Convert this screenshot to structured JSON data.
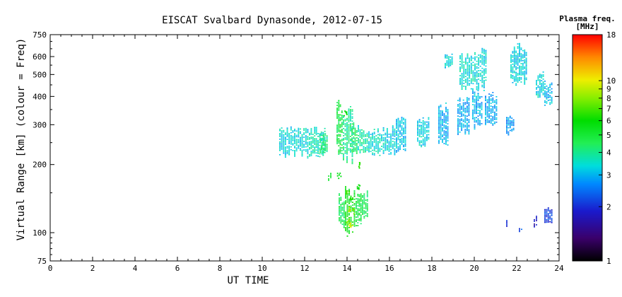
{
  "chart_data": {
    "type": "heatmap",
    "title": "EISCAT Svalbard Dynasonde, 2012-07-15",
    "xlabel": "UT TIME",
    "ylabel": "Virtual Range [km] (colour = Freq)",
    "x_scale": "linear",
    "y_scale": "log",
    "xlim": [
      0,
      24
    ],
    "ylim": [
      75,
      750
    ],
    "x_ticks": [
      0,
      2,
      4,
      6,
      8,
      10,
      12,
      14,
      16,
      18,
      20,
      22,
      24
    ],
    "y_ticks": [
      75,
      100,
      200,
      300,
      400,
      500,
      600,
      750
    ],
    "grid": false,
    "colorbar": {
      "title_line1": "Plasma freq.",
      "title_line2": "[MHz]",
      "scale": "log",
      "range": [
        1,
        18
      ],
      "ticks": [
        1,
        2,
        3,
        4,
        5,
        6,
        7,
        8,
        9,
        10,
        18
      ]
    },
    "clusters": [
      {
        "t0": 10.8,
        "t1": 11.5,
        "r0": 215,
        "r1": 305,
        "f": 3.3
      },
      {
        "t0": 11.5,
        "t1": 12.2,
        "r0": 215,
        "r1": 300,
        "f": 3.4
      },
      {
        "t0": 12.2,
        "t1": 13.0,
        "r0": 215,
        "r1": 295,
        "f": 3.6
      },
      {
        "t0": 12.7,
        "t1": 13.1,
        "r0": 220,
        "r1": 285,
        "f": 4.2
      },
      {
        "t0": 13.1,
        "t1": 13.3,
        "r0": 170,
        "r1": 185,
        "f": 5.0
      },
      {
        "t0": 13.5,
        "t1": 13.8,
        "r0": 215,
        "r1": 400,
        "f": 4.8
      },
      {
        "t0": 13.8,
        "t1": 14.3,
        "r0": 200,
        "r1": 370,
        "f": 4.0
      },
      {
        "t0": 14.2,
        "t1": 14.5,
        "r0": 215,
        "r1": 315,
        "f": 4.3
      },
      {
        "t0": 14.5,
        "t1": 15.0,
        "r0": 215,
        "r1": 300,
        "f": 3.8
      },
      {
        "t0": 15.0,
        "t1": 15.6,
        "r0": 215,
        "r1": 290,
        "f": 3.5
      },
      {
        "t0": 15.6,
        "t1": 16.3,
        "r0": 220,
        "r1": 300,
        "f": 3.3
      },
      {
        "t0": 16.3,
        "t1": 16.8,
        "r0": 225,
        "r1": 330,
        "f": 3.1
      },
      {
        "t0": 17.3,
        "t1": 17.9,
        "r0": 240,
        "r1": 330,
        "f": 3.3
      },
      {
        "t0": 18.3,
        "t1": 18.8,
        "r0": 240,
        "r1": 380,
        "f": 3.0
      },
      {
        "t0": 18.6,
        "t1": 19.0,
        "r0": 530,
        "r1": 620,
        "f": 3.4
      },
      {
        "t0": 19.2,
        "t1": 19.8,
        "r0": 270,
        "r1": 400,
        "f": 2.9
      },
      {
        "t0": 19.3,
        "t1": 20.0,
        "r0": 420,
        "r1": 640,
        "f": 3.5
      },
      {
        "t0": 19.9,
        "t1": 20.4,
        "r0": 280,
        "r1": 450,
        "f": 3.0
      },
      {
        "t0": 20.0,
        "t1": 20.6,
        "r0": 420,
        "r1": 660,
        "f": 3.4
      },
      {
        "t0": 20.5,
        "t1": 21.1,
        "r0": 290,
        "r1": 420,
        "f": 2.9
      },
      {
        "t0": 21.5,
        "t1": 21.9,
        "r0": 270,
        "r1": 330,
        "f": 2.8
      },
      {
        "t0": 21.7,
        "t1": 22.5,
        "r0": 440,
        "r1": 690,
        "f": 3.3
      },
      {
        "t0": 22.9,
        "t1": 23.3,
        "r0": 390,
        "r1": 520,
        "f": 3.3
      },
      {
        "t0": 23.3,
        "t1": 23.7,
        "r0": 360,
        "r1": 470,
        "f": 3.1
      },
      {
        "t0": 13.6,
        "t1": 13.9,
        "r0": 105,
        "r1": 150,
        "f": 4.5
      },
      {
        "t0": 13.9,
        "t1": 14.4,
        "r0": 95,
        "r1": 165,
        "f": 5.5
      },
      {
        "t0": 14.4,
        "t1": 14.7,
        "r0": 105,
        "r1": 150,
        "f": 4.8
      },
      {
        "t0": 14.7,
        "t1": 15.0,
        "r0": 115,
        "r1": 155,
        "f": 4.6
      },
      {
        "t0": 21.5,
        "t1": 21.6,
        "r0": 105,
        "r1": 115,
        "f": 1.9
      },
      {
        "t0": 22.1,
        "t1": 22.3,
        "r0": 100,
        "r1": 105,
        "f": 2.2
      },
      {
        "t0": 22.8,
        "t1": 23.0,
        "r0": 105,
        "r1": 120,
        "f": 1.8
      },
      {
        "t0": 23.3,
        "t1": 23.7,
        "r0": 110,
        "r1": 130,
        "f": 2.1
      }
    ],
    "highlights": [
      {
        "t": 13.6,
        "r": 180,
        "f": 5.5
      },
      {
        "t": 13.9,
        "r": 340,
        "f": 6.0
      },
      {
        "t": 14.0,
        "r": 150,
        "f": 7.0
      },
      {
        "t": 14.1,
        "r": 128,
        "f": 9.0
      },
      {
        "t": 14.15,
        "r": 108,
        "f": 10.0
      },
      {
        "t": 14.05,
        "r": 112,
        "f": 8.0
      },
      {
        "t": 14.2,
        "r": 140,
        "f": 6.5
      },
      {
        "t": 14.3,
        "r": 125,
        "f": 7.5
      },
      {
        "t": 14.5,
        "r": 160,
        "f": 6.0
      },
      {
        "t": 14.6,
        "r": 200,
        "f": 6.5
      }
    ]
  }
}
